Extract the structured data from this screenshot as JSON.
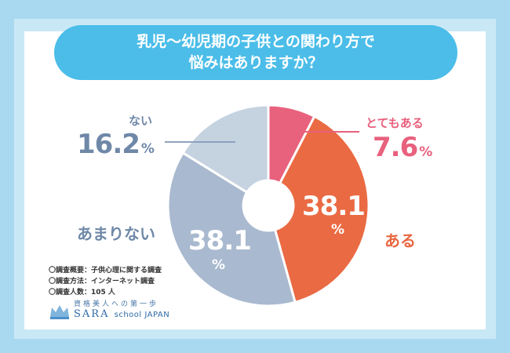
{
  "title": {
    "line1": "乳児〜幼児期の子供との関わり方で",
    "line2": "悩みはありますか？"
  },
  "chart_data": {
    "type": "pie",
    "donut": true,
    "slices": [
      {
        "label": "とてもある",
        "value": 7.6,
        "color": "#e8617d"
      },
      {
        "label": "ある",
        "value": 38.1,
        "color": "#ea6a43"
      },
      {
        "label": "あまりない",
        "value": 38.1,
        "color": "#a9b9cf"
      },
      {
        "label": "ない",
        "value": 16.2,
        "color": "#c5d2e0"
      }
    ],
    "percent_symbol": "%"
  },
  "labels": {
    "totemo_aru": {
      "name": "とてもある",
      "value": "7.6"
    },
    "aru": {
      "name": "ある",
      "value": "38.1"
    },
    "amari_nai": {
      "name": "あまりない",
      "value": "38.1"
    },
    "nai": {
      "name": "ない",
      "value": "16.2"
    }
  },
  "survey": {
    "line1": "〇調査概要：子供心理に関する調査",
    "line2": "〇調査方法：インターネット調査",
    "line3": "〇調査人数：105 人"
  },
  "logo": {
    "tagline": "資格美人への第一歩",
    "brand": "SARA",
    "suffix": "school JAPAN",
    "icon": "crown-icon"
  }
}
